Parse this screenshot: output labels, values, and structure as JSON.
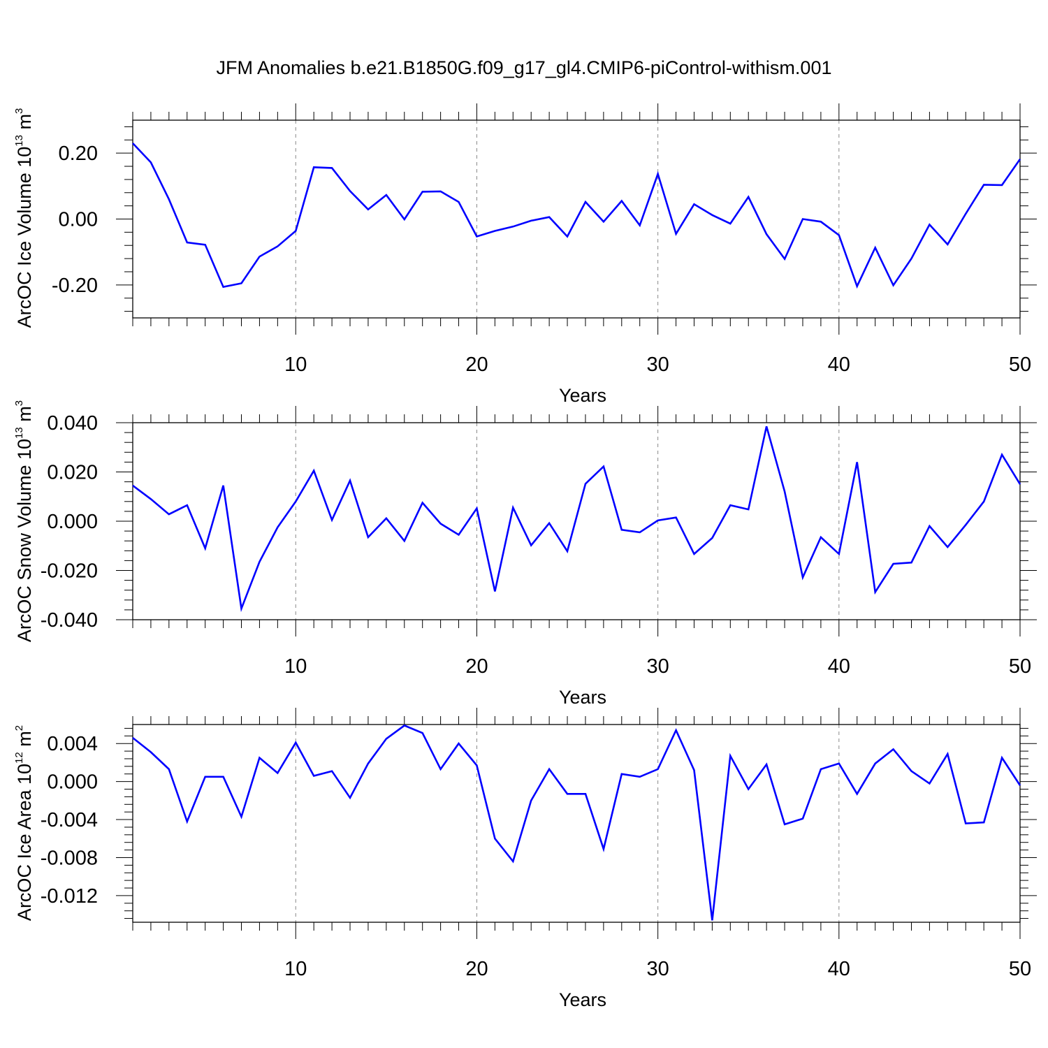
{
  "figure": {
    "title": "JFM Anomalies b.e21.B1850G.f09_g17_gl4.CMIP6-piControl-withism.001"
  },
  "chart_data": [
    {
      "type": "line",
      "ylabel": {
        "text": "ArcOC Ice Volume 10",
        "exp": "13",
        "unit": " m",
        "unit_exp": "3"
      },
      "xlabel": "Years",
      "xlim": [
        1,
        50
      ],
      "ylim": [
        -0.3,
        0.3
      ],
      "xticks": [
        10,
        20,
        30,
        40,
        50
      ],
      "xtick_labels": [
        "10",
        "20",
        "30",
        "40",
        "50"
      ],
      "yticks": [
        -0.2,
        0.0,
        0.2
      ],
      "ytick_labels": [
        "-0.20",
        "0.00",
        "0.20"
      ],
      "grid_x": [
        10,
        20,
        30,
        40
      ],
      "color": "#0000ff",
      "x": [
        1,
        2,
        3,
        4,
        5,
        6,
        7,
        8,
        9,
        10,
        11,
        12,
        13,
        14,
        15,
        16,
        17,
        18,
        19,
        20,
        21,
        22,
        23,
        24,
        25,
        26,
        27,
        28,
        29,
        30,
        31,
        32,
        33,
        34,
        35,
        36,
        37,
        38,
        39,
        40,
        41,
        42,
        43,
        44,
        45,
        46,
        47,
        48,
        49,
        50
      ],
      "values": [
        0.23,
        0.172,
        0.06,
        -0.071,
        -0.078,
        -0.206,
        -0.195,
        -0.114,
        -0.083,
        -0.036,
        0.157,
        0.155,
        0.085,
        0.029,
        0.073,
        -0.001,
        0.083,
        0.084,
        0.052,
        -0.053,
        -0.036,
        -0.023,
        -0.005,
        0.006,
        -0.053,
        0.052,
        -0.008,
        0.055,
        -0.019,
        0.137,
        -0.045,
        0.045,
        0.012,
        -0.014,
        0.067,
        -0.046,
        -0.121,
        0.0,
        -0.008,
        -0.049,
        -0.204,
        -0.087,
        -0.201,
        -0.12,
        -0.017,
        -0.077,
        0.016,
        0.104,
        0.103,
        0.182
      ]
    },
    {
      "type": "line",
      "ylabel": {
        "text": "ArcOC Snow Volume 10",
        "exp": "13",
        "unit": " m",
        "unit_exp": "3"
      },
      "xlabel": "Years",
      "xlim": [
        1,
        50
      ],
      "ylim": [
        -0.04,
        0.04
      ],
      "xticks": [
        10,
        20,
        30,
        40,
        50
      ],
      "xtick_labels": [
        "10",
        "20",
        "30",
        "40",
        "50"
      ],
      "yticks": [
        -0.04,
        -0.02,
        0.0,
        0.02,
        0.04
      ],
      "ytick_labels": [
        "-0.040",
        "-0.020",
        "0.000",
        "0.020",
        "0.040"
      ],
      "grid_x": [
        10,
        20,
        30,
        40
      ],
      "color": "#0000ff",
      "x": [
        1,
        2,
        3,
        4,
        5,
        6,
        7,
        8,
        9,
        10,
        11,
        12,
        13,
        14,
        15,
        16,
        17,
        18,
        19,
        20,
        21,
        22,
        23,
        24,
        25,
        26,
        27,
        28,
        29,
        30,
        31,
        32,
        33,
        34,
        35,
        36,
        37,
        38,
        39,
        40,
        41,
        42,
        43,
        44,
        45,
        46,
        47,
        48,
        49,
        50
      ],
      "values": [
        0.0145,
        0.009,
        0.0028,
        0.0065,
        -0.011,
        0.0145,
        -0.0355,
        -0.0165,
        -0.0025,
        0.008,
        0.0205,
        0.0005,
        0.0165,
        -0.0065,
        0.0012,
        -0.008,
        0.0075,
        -0.001,
        -0.0055,
        0.0052,
        -0.0285,
        0.0055,
        -0.0098,
        -0.0008,
        -0.0122,
        0.0152,
        0.0222,
        -0.0035,
        -0.0045,
        0.0003,
        0.0015,
        -0.0133,
        -0.0068,
        0.0065,
        0.0048,
        0.0385,
        0.012,
        -0.0228,
        -0.0065,
        -0.0133,
        0.024,
        -0.0288,
        -0.0173,
        -0.0168,
        -0.002,
        -0.0105,
        -0.0015,
        0.008,
        0.027,
        0.015
      ]
    },
    {
      "type": "line",
      "ylabel": {
        "text": "ArcOC Ice Area 10",
        "exp": "12",
        "unit": " m",
        "unit_exp": "2"
      },
      "xlabel": "Years",
      "xlim": [
        1,
        50
      ],
      "ylim": [
        -0.0148,
        0.006
      ],
      "xticks": [
        10,
        20,
        30,
        40,
        50
      ],
      "xtick_labels": [
        "10",
        "20",
        "30",
        "40",
        "50"
      ],
      "yticks": [
        -0.012,
        -0.008,
        -0.004,
        0.0,
        0.004
      ],
      "ytick_labels": [
        "-0.012",
        "-0.008",
        "-0.004",
        "0.000",
        "0.004"
      ],
      "grid_x": [
        10,
        20,
        30,
        40
      ],
      "color": "#0000ff",
      "x": [
        1,
        2,
        3,
        4,
        5,
        6,
        7,
        8,
        9,
        10,
        11,
        12,
        13,
        14,
        15,
        16,
        17,
        18,
        19,
        20,
        21,
        22,
        23,
        24,
        25,
        26,
        27,
        28,
        29,
        30,
        31,
        32,
        33,
        34,
        35,
        36,
        37,
        38,
        39,
        40,
        41,
        42,
        43,
        44,
        45,
        46,
        47,
        48,
        49,
        50
      ],
      "values": [
        0.0046,
        0.0031,
        0.0013,
        -0.0042,
        0.0005,
        0.0005,
        -0.0037,
        0.0025,
        0.0009,
        0.0041,
        0.0006,
        0.0011,
        -0.0017,
        0.0019,
        0.0045,
        0.0059,
        0.0051,
        0.0013,
        0.004,
        0.0017,
        -0.006,
        -0.0084,
        -0.002,
        0.0013,
        -0.0013,
        -0.0013,
        -0.0071,
        0.0008,
        0.0005,
        0.0013,
        0.0054,
        0.0012,
        -0.0146,
        0.0027,
        -0.0008,
        0.0018,
        -0.0045,
        -0.0039,
        0.0013,
        0.0019,
        -0.0013,
        0.0019,
        0.0034,
        0.0011,
        -0.0002,
        0.0029,
        -0.0044,
        -0.0043,
        0.0025,
        -0.0004
      ]
    }
  ]
}
